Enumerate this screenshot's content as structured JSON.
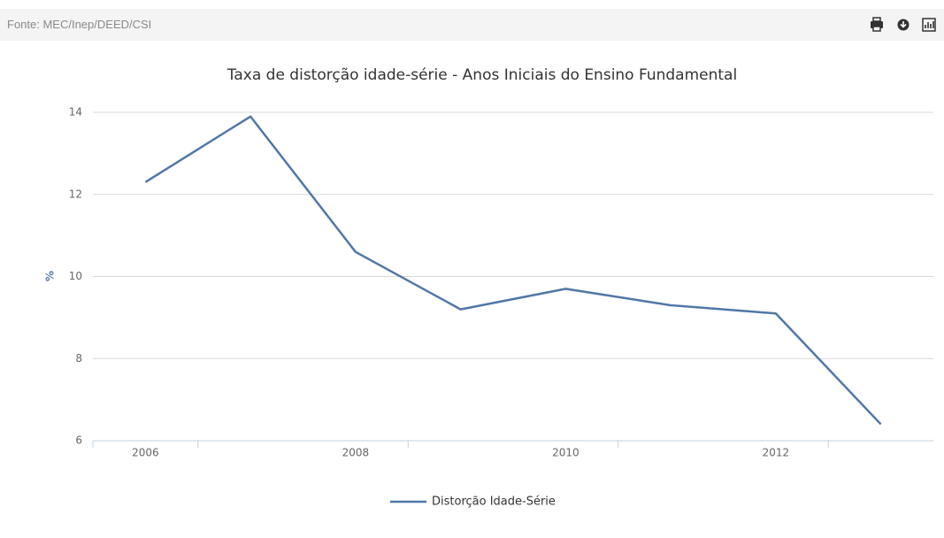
{
  "source": "Fonte: MEC/Inep/DEED/CSI",
  "chart_data": {
    "type": "line",
    "title": "Taxa de distorção idade-série - Anos Iniciais do Ensino Fundamental",
    "y_label": "%",
    "categories": [
      "2006",
      null,
      "2008",
      null,
      "2010",
      null,
      "2012",
      null
    ],
    "series": [
      {
        "name": "Distorção Idade-Série",
        "color": "#5077a8",
        "values": [
          12.3,
          13.9,
          10.6,
          9.2,
          9.7,
          9.3,
          9.1,
          6.4
        ]
      }
    ],
    "ylim": [
      6,
      14
    ],
    "yticks": [
      6,
      8,
      10,
      12,
      14
    ],
    "grid": true,
    "legend": "bottom"
  }
}
